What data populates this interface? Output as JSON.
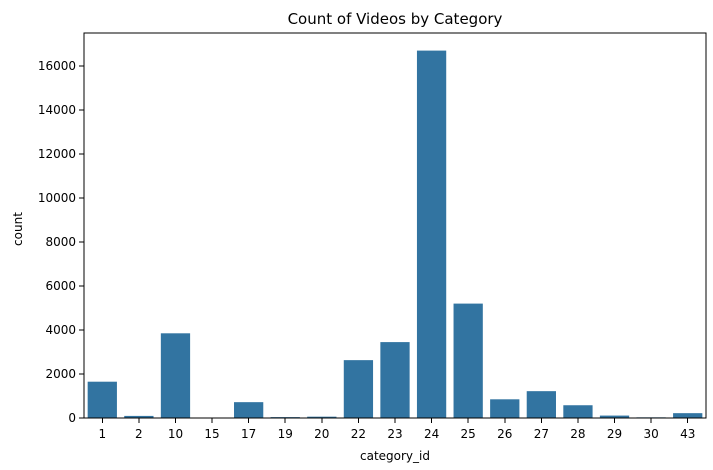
{
  "chart_data": {
    "type": "bar",
    "title": "Count of Videos by Category",
    "xlabel": "category_id",
    "ylabel": "count",
    "categories": [
      "1",
      "2",
      "10",
      "15",
      "17",
      "19",
      "20",
      "22",
      "23",
      "24",
      "25",
      "26",
      "27",
      "28",
      "29",
      "30",
      "43"
    ],
    "values": [
      1650,
      95,
      3850,
      0,
      720,
      40,
      60,
      2630,
      3450,
      16700,
      5200,
      850,
      1220,
      580,
      110,
      30,
      220
    ],
    "ylim": [
      0,
      17500
    ],
    "yticks": [
      0,
      2000,
      4000,
      6000,
      8000,
      10000,
      12000,
      14000,
      16000
    ],
    "grid": false,
    "legend": "none",
    "bar_color": "#3274a1"
  }
}
